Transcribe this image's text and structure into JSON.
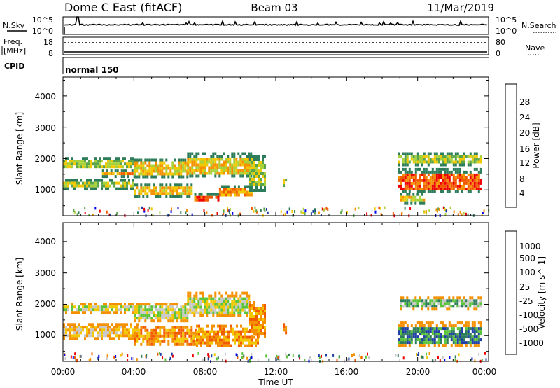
{
  "chart_data": {
    "type": "heatmap",
    "header": {
      "station": "Dome C East (fitACF)",
      "beam": "Beam 03",
      "date": "11/Mar/2019"
    },
    "panels": {
      "nsky": {
        "label": "N.Sky",
        "ticks_left": [
          "10^5",
          "10^0"
        ],
        "ticks_right": [
          "10^5",
          "10^0"
        ],
        "right_label": "N.Search"
      },
      "freq": {
        "label_line1": "Freq.",
        "label_line2": "[MHz]",
        "ticks_left": [
          "18",
          "8"
        ],
        "ticks_right": [
          "80",
          "0"
        ],
        "right_label": "Nave"
      },
      "cpid": {
        "label": "CPID",
        "mode": "normal 150"
      }
    },
    "x_axis": {
      "label": "Time UT",
      "range_hours": [
        0,
        24
      ],
      "ticks": [
        "00:00",
        "04:00",
        "08:00",
        "12:00",
        "16:00",
        "20:00",
        "00:00"
      ]
    },
    "y_axis": {
      "label": "Slant Range [km]",
      "range": [
        180,
        4600
      ],
      "ticks": [
        "1000",
        "2000",
        "3000",
        "4000"
      ]
    },
    "power": {
      "colorbar_label": "Power [dB]",
      "colorbar_ticks": [
        "4",
        "8",
        "12",
        "16",
        "20",
        "24",
        "28"
      ],
      "colors": [
        "#0000ee",
        "#1f3fa6",
        "#2e7d5a",
        "#5aa54a",
        "#a8d23c",
        "#f2c800",
        "#f59000",
        "#f25a00",
        "#ee0000"
      ],
      "echo_bands": [
        {
          "t_start": 0.0,
          "t_end": 4.2,
          "range_low": 1700,
          "range_high": 2050,
          "level": 4
        },
        {
          "t_start": 0.0,
          "t_end": 4.0,
          "range_low": 1050,
          "range_high": 1350,
          "level": 4
        },
        {
          "t_start": 2.2,
          "t_end": 4.0,
          "range_low": 1450,
          "range_high": 1650,
          "level": 6
        },
        {
          "t_start": 4.0,
          "t_end": 7.0,
          "range_low": 1400,
          "range_high": 2000,
          "level": 5
        },
        {
          "t_start": 4.0,
          "t_end": 7.2,
          "range_low": 800,
          "range_high": 1200,
          "level": 5
        },
        {
          "t_start": 7.0,
          "t_end": 10.7,
          "range_low": 1400,
          "range_high": 2200,
          "level": 5
        },
        {
          "t_start": 7.4,
          "t_end": 8.8,
          "range_low": 650,
          "range_high": 900,
          "level": 7
        },
        {
          "t_start": 8.8,
          "t_end": 10.6,
          "range_low": 800,
          "range_high": 1150,
          "level": 6
        },
        {
          "t_start": 10.5,
          "t_end": 11.4,
          "range_low": 1000,
          "range_high": 2100,
          "level": 4
        },
        {
          "t_start": 12.4,
          "t_end": 12.6,
          "range_low": 1100,
          "range_high": 1450,
          "level": 4
        },
        {
          "t_start": 18.9,
          "t_end": 23.6,
          "range_low": 900,
          "range_high": 1700,
          "level": 7
        },
        {
          "t_start": 18.9,
          "t_end": 23.6,
          "range_low": 1800,
          "range_high": 2200,
          "level": 4
        },
        {
          "t_start": 19.0,
          "t_end": 20.4,
          "range_low": 600,
          "range_high": 900,
          "level": 5
        }
      ]
    },
    "velocity": {
      "colorbar_label": "Velocity [m s^-1]",
      "colorbar_ticks": [
        "1000",
        "500",
        "100",
        "25",
        "-25",
        "-100",
        "-500",
        "-1000"
      ],
      "colors": [
        "#ee0000",
        "#f25a00",
        "#f59000",
        "#f2c800",
        "#c8c8c8",
        "#5bc43a",
        "#2e7d5a",
        "#1f3fa6",
        "#0000ee"
      ],
      "echo_bands": [
        {
          "t_start": 0.0,
          "t_end": 4.2,
          "range_low": 1750,
          "range_high": 2050,
          "level": 4
        },
        {
          "t_start": 0.0,
          "t_end": 4.2,
          "range_low": 950,
          "range_high": 1400,
          "level": 3
        },
        {
          "t_start": 4.0,
          "t_end": 7.0,
          "range_low": 1500,
          "range_high": 2050,
          "level": 4
        },
        {
          "t_start": 4.0,
          "t_end": 7.5,
          "range_low": 700,
          "range_high": 1300,
          "level": 2
        },
        {
          "t_start": 7.0,
          "t_end": 10.5,
          "range_low": 1600,
          "range_high": 2400,
          "level": 4
        },
        {
          "t_start": 7.5,
          "t_end": 11.0,
          "range_low": 700,
          "range_high": 1350,
          "level": 2
        },
        {
          "t_start": 10.5,
          "t_end": 11.4,
          "range_low": 1000,
          "range_high": 2100,
          "level": 2
        },
        {
          "t_start": 12.4,
          "t_end": 12.6,
          "range_low": 1100,
          "range_high": 1400,
          "level": 2
        },
        {
          "t_start": 18.9,
          "t_end": 23.6,
          "range_low": 650,
          "range_high": 1450,
          "level": 6
        },
        {
          "t_start": 19.0,
          "t_end": 23.6,
          "range_low": 1850,
          "range_high": 2250,
          "level": 5
        }
      ]
    }
  }
}
